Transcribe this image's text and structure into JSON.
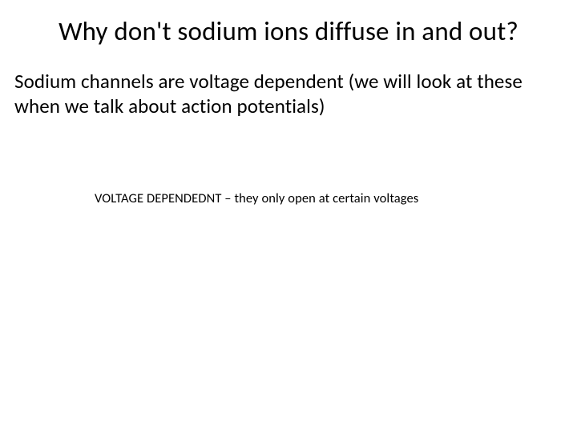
{
  "slide": {
    "title": "Why don't sodium ions diffuse in and out?",
    "body": "Sodium channels are voltage dependent (we will look at these when we talk about action potentials)",
    "note": "VOLTAGE DEPENDEDNT – they only open at certain voltages"
  },
  "colors": {
    "background": "#ffffff",
    "text": "#000000"
  },
  "typography": {
    "title_fontsize": 33,
    "body_fontsize": 25,
    "note_fontsize": 16.5,
    "font_family": "Calibri"
  }
}
